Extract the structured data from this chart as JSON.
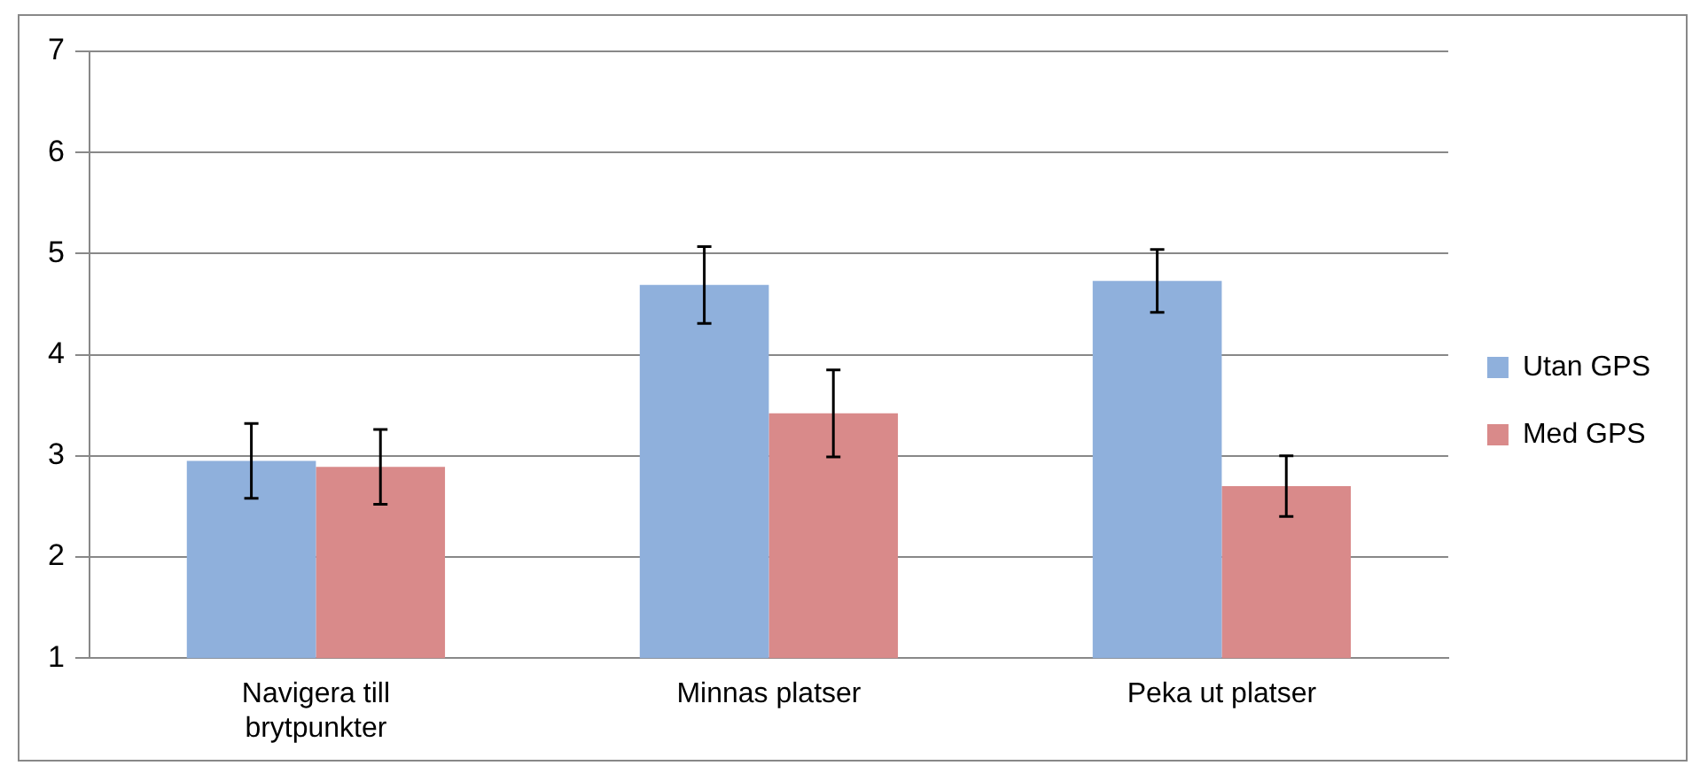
{
  "chart_data": {
    "type": "bar",
    "categories": [
      "Navigera till brytpunkter",
      "Minnas platser",
      "Peka ut platser"
    ],
    "series": [
      {
        "name": "Utan GPS",
        "color": "#8fb0dc",
        "values": [
          2.95,
          4.69,
          4.73
        ],
        "errors": [
          0.37,
          0.38,
          0.31
        ]
      },
      {
        "name": "Med GPS",
        "color": "#d98a8a",
        "values": [
          2.89,
          3.42,
          2.7
        ],
        "errors": [
          0.37,
          0.43,
          0.3
        ]
      }
    ],
    "ylim": [
      1,
      7
    ],
    "yticks": [
      1,
      2,
      3,
      4,
      5,
      6,
      7
    ],
    "grid": "y",
    "legend": "right"
  }
}
